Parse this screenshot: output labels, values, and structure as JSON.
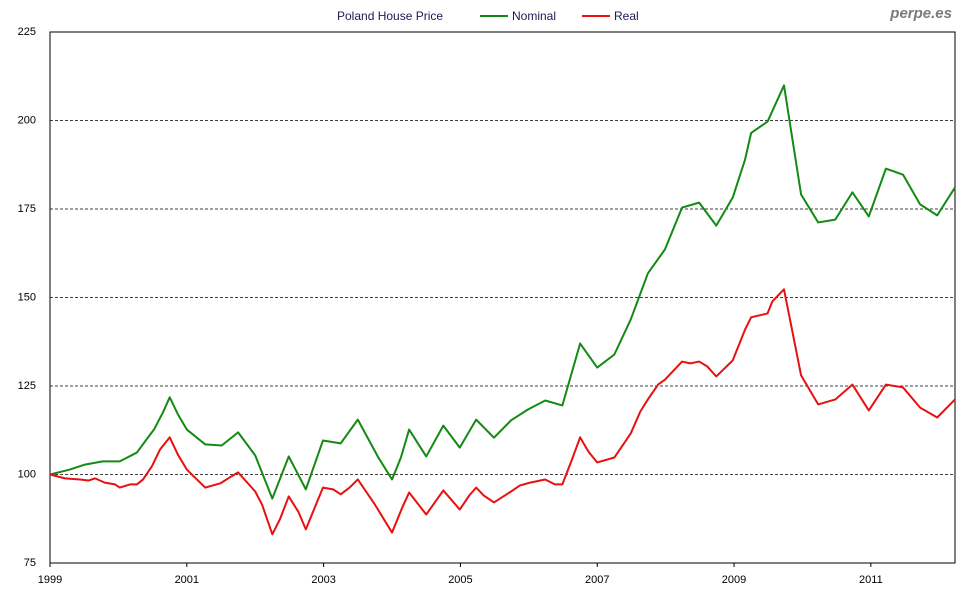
{
  "chart_data": {
    "type": "line",
    "title": "Poland House Price",
    "watermark": "perpe.es",
    "xlim": [
      1999,
      2012.23
    ],
    "xticks": [
      1999,
      2001,
      2003,
      2005,
      2007,
      2009,
      2011
    ],
    "ylim": [
      75,
      225
    ],
    "yticks": [
      75,
      100,
      125,
      150,
      175,
      200,
      225
    ],
    "grid": true,
    "series": [
      {
        "name": "Nominal",
        "color": "#138a13",
        "x": [
          1999.0,
          1999.29,
          1999.51,
          1999.77,
          2000.02,
          2000.27,
          2000.43,
          2000.52,
          2000.65,
          2000.75,
          2000.87,
          2001.0,
          2001.27,
          2001.51,
          2001.75,
          2002.0,
          2002.25,
          2002.49,
          2002.74,
          2002.99,
          2003.25,
          2003.5,
          2003.8,
          2004.0,
          2004.13,
          2004.25,
          2004.5,
          2004.75,
          2004.99,
          2005.23,
          2005.49,
          2005.74,
          2005.99,
          2006.24,
          2006.49,
          2006.75,
          2007.0,
          2007.25,
          2007.49,
          2007.74,
          2007.99,
          2008.24,
          2008.49,
          2008.74,
          2008.98,
          2009.16,
          2009.25,
          2009.49,
          2009.73,
          2009.98,
          2010.23,
          2010.48,
          2010.73,
          2010.97,
          2011.22,
          2011.47,
          2011.72,
          2011.97,
          2012.23
        ],
        "values": [
          100,
          101.4,
          102.8,
          103.7,
          103.7,
          106.2,
          110.4,
          112.7,
          117.5,
          121.8,
          117,
          112.7,
          108.5,
          108.2,
          111.9,
          105.4,
          93.2,
          105.1,
          95.8,
          109.6,
          108.8,
          115.5,
          104.8,
          98.6,
          104.8,
          112.7,
          105.1,
          113.8,
          107.6,
          115.5,
          110.4,
          115.3,
          118.4,
          120.9,
          119.5,
          137,
          130.2,
          133.9,
          143.8,
          156.8,
          163.6,
          175.4,
          176.8,
          170.3,
          178.2,
          188.9,
          196.5,
          199.7,
          209.9,
          179.1,
          171.2,
          172,
          179.7,
          172.9,
          186.4,
          184.7,
          176.3,
          173.2,
          181.1
        ]
      },
      {
        "name": "Real",
        "color": "#e81010",
        "x": [
          1999.0,
          1999.22,
          1999.44,
          1999.56,
          1999.66,
          1999.8,
          1999.95,
          2000.02,
          2000.17,
          2000.27,
          2000.36,
          2000.49,
          2000.61,
          2000.75,
          2000.87,
          2001.0,
          2001.27,
          2001.49,
          2001.63,
          2001.75,
          2002.0,
          2002.1,
          2002.25,
          2002.36,
          2002.49,
          2002.63,
          2002.74,
          2002.99,
          2003.14,
          2003.25,
          2003.38,
          2003.5,
          2003.75,
          2004.0,
          2004.15,
          2004.25,
          2004.5,
          2004.75,
          2004.99,
          2005.13,
          2005.23,
          2005.34,
          2005.49,
          2005.74,
          2005.87,
          2006.02,
          2006.24,
          2006.38,
          2006.49,
          2006.63,
          2006.75,
          2006.87,
          2007.0,
          2007.25,
          2007.49,
          2007.63,
          2007.74,
          2007.89,
          2007.99,
          2008.24,
          2008.36,
          2008.49,
          2008.61,
          2008.74,
          2008.98,
          2009.16,
          2009.25,
          2009.49,
          2009.56,
          2009.73,
          2009.98,
          2010.23,
          2010.48,
          2010.73,
          2010.97,
          2011.22,
          2011.47,
          2011.72,
          2011.97,
          2012.23
        ],
        "values": [
          100,
          98.9,
          98.6,
          98.3,
          98.9,
          97.7,
          97.2,
          96.3,
          97.2,
          97.2,
          98.6,
          102.3,
          107.1,
          110.5,
          105.6,
          101.4,
          96.3,
          97.5,
          99.2,
          100.6,
          95.2,
          91.5,
          83.1,
          87.3,
          93.8,
          89.5,
          84.5,
          96.3,
          95.8,
          94.4,
          96.3,
          98.6,
          91.5,
          83.6,
          90.7,
          94.9,
          88.7,
          95.5,
          90.1,
          94.1,
          96.3,
          94.1,
          92.1,
          95.2,
          96.9,
          97.7,
          98.6,
          97.2,
          97.2,
          104.2,
          110.5,
          106.5,
          103.4,
          104.8,
          111.6,
          117.8,
          121.2,
          125.4,
          126.8,
          131.9,
          131.4,
          131.9,
          130.5,
          127.7,
          132.2,
          140.9,
          144.4,
          145.5,
          148.9,
          152.3,
          128,
          119.8,
          121.2,
          125.4,
          118.1,
          125.4,
          124.6,
          118.9,
          116.1,
          121.2
        ]
      }
    ]
  }
}
